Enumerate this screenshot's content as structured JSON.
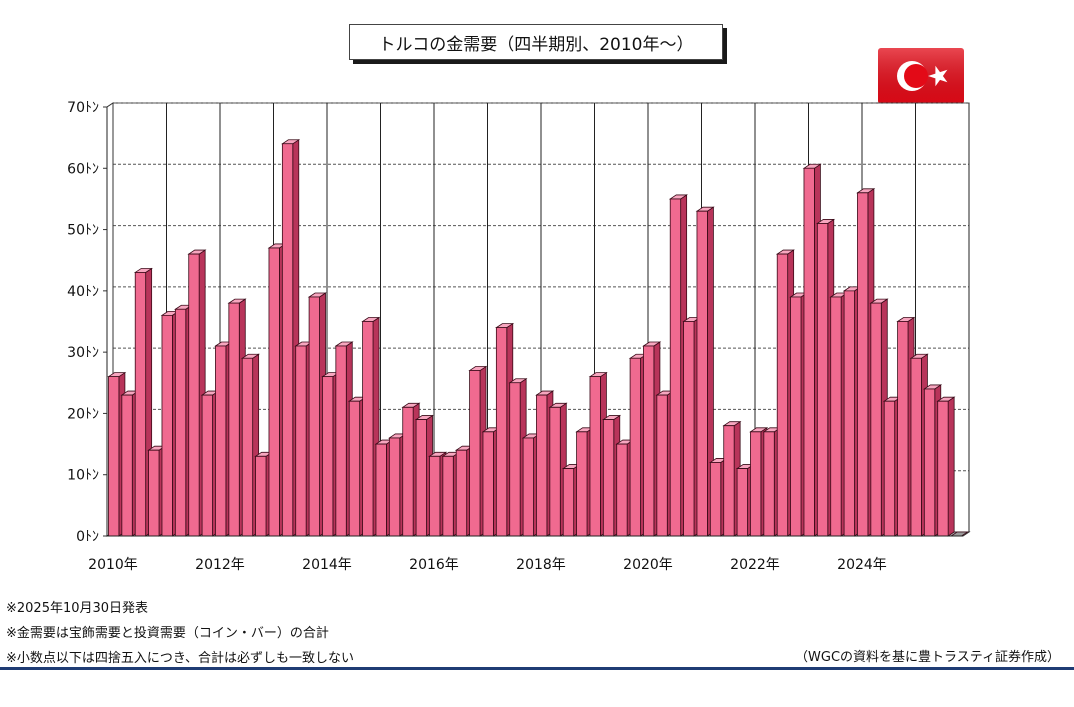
{
  "title": "トルコの金需要（四半期別、2010年～）",
  "unit_suffix": "ﾄﾝ",
  "flag_icon": "turkey-flag",
  "colors": {
    "bar_front": "#f06a90",
    "bar_side": "#b8345a",
    "bar_top": "#f7a6bf",
    "grid": "#555555",
    "rule": "#1f3c74",
    "flag_red": "#e30a17"
  },
  "notes": [
    "※2025年10月30日発表",
    "※金需要は宝飾需要と投資需要（コイン・バー）の合計",
    "※小数点以下は四捨五入につき、合計は必ずしも一致しない"
  ],
  "source": "（WGCの資料を基に豊トラスティ証券作成）",
  "chart_data": {
    "type": "bar",
    "title": "トルコの金需要（四半期別、2010年～）",
    "xlabel": "",
    "ylabel": "",
    "ylim": [
      0,
      70
    ],
    "yticks": [
      0,
      10,
      20,
      30,
      40,
      50,
      60,
      70
    ],
    "ytick_labels": [
      "0ﾄﾝ",
      "10ﾄﾝ",
      "20ﾄﾝ",
      "30ﾄﾝ",
      "40ﾄﾝ",
      "50ﾄﾝ",
      "60ﾄﾝ",
      "70ﾄﾝ"
    ],
    "grid": true,
    "x_labels": [
      "2010年",
      "2012年",
      "2014年",
      "2016年",
      "2018年",
      "2020年",
      "2022年",
      "2024年"
    ],
    "categories": [
      "2010Q1",
      "2010Q2",
      "2010Q3",
      "2010Q4",
      "2011Q1",
      "2011Q2",
      "2011Q3",
      "2011Q4",
      "2012Q1",
      "2012Q2",
      "2012Q3",
      "2012Q4",
      "2013Q1",
      "2013Q2",
      "2013Q3",
      "2013Q4",
      "2014Q1",
      "2014Q2",
      "2014Q3",
      "2014Q4",
      "2015Q1",
      "2015Q2",
      "2015Q3",
      "2015Q4",
      "2016Q1",
      "2016Q2",
      "2016Q3",
      "2016Q4",
      "2017Q1",
      "2017Q2",
      "2017Q3",
      "2017Q4",
      "2018Q1",
      "2018Q2",
      "2018Q3",
      "2018Q4",
      "2019Q1",
      "2019Q2",
      "2019Q3",
      "2019Q4",
      "2020Q1",
      "2020Q2",
      "2020Q3",
      "2020Q4",
      "2021Q1",
      "2021Q2",
      "2021Q3",
      "2021Q4",
      "2022Q1",
      "2022Q2",
      "2022Q3",
      "2022Q4",
      "2023Q1",
      "2023Q2",
      "2023Q3",
      "2023Q4",
      "2024Q1",
      "2024Q2",
      "2024Q3",
      "2024Q4",
      "2025Q1",
      "2025Q2",
      "2025Q3",
      "2025Q4"
    ],
    "values": [
      26,
      23,
      43,
      14,
      36,
      37,
      46,
      23,
      31,
      38,
      29,
      13,
      47,
      64,
      31,
      39,
      26,
      31,
      22,
      35,
      15,
      16,
      21,
      19,
      13,
      13,
      14,
      27,
      17,
      34,
      25,
      16,
      23,
      21,
      11,
      17,
      26,
      19,
      15,
      29,
      31,
      23,
      55,
      35,
      53,
      12,
      18,
      11,
      17,
      17,
      46,
      39,
      60,
      51,
      39,
      40,
      56,
      38,
      22,
      35,
      29,
      24,
      22,
      0
    ]
  }
}
